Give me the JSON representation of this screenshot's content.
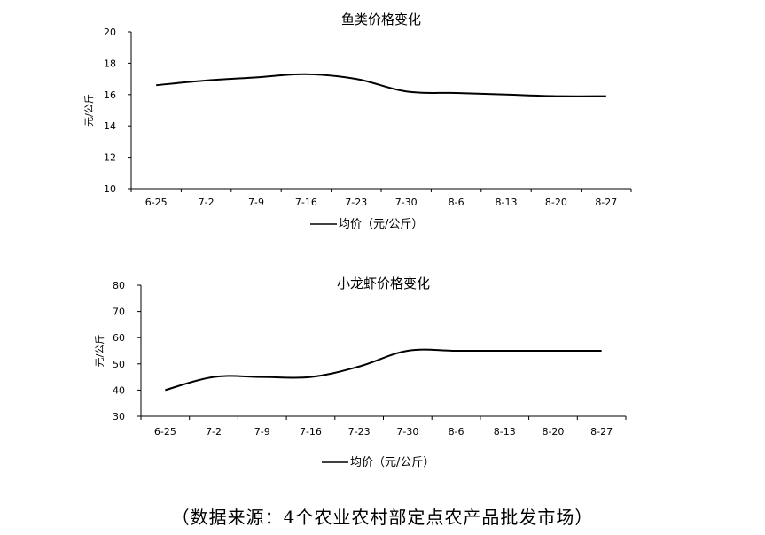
{
  "chart_data": [
    {
      "type": "line",
      "title": "鱼类价格变化",
      "ylabel": "元/公斤",
      "xlabel": "",
      "categories": [
        "6-25",
        "7-2",
        "7-9",
        "7-16",
        "7-23",
        "7-30",
        "8-6",
        "8-13",
        "8-20",
        "8-27"
      ],
      "ylim": [
        10,
        20
      ],
      "yticks": [
        10,
        12,
        14,
        16,
        18,
        20
      ],
      "series": [
        {
          "name": "均价（元/公斤）",
          "values": [
            16.6,
            16.9,
            17.1,
            17.3,
            17.0,
            16.2,
            16.1,
            16.0,
            15.9,
            15.9
          ]
        }
      ],
      "legend_position": "bottom",
      "grid": false
    },
    {
      "type": "line",
      "title": "小龙虾价格变化",
      "ylabel": "元/公斤",
      "xlabel": "",
      "categories": [
        "6-25",
        "7-2",
        "7-9",
        "7-16",
        "7-23",
        "7-30",
        "8-6",
        "8-13",
        "8-20",
        "8-27"
      ],
      "ylim": [
        30,
        80
      ],
      "yticks": [
        30,
        40,
        50,
        60,
        70,
        80
      ],
      "series": [
        {
          "name": "均价（元/公斤）",
          "values": [
            40,
            45,
            45,
            45,
            49,
            55,
            55,
            55,
            55,
            55
          ]
        }
      ],
      "legend_position": "bottom",
      "grid": false
    }
  ],
  "source_note": "（数据来源：4个农业农村部定点农产品批发市场）"
}
